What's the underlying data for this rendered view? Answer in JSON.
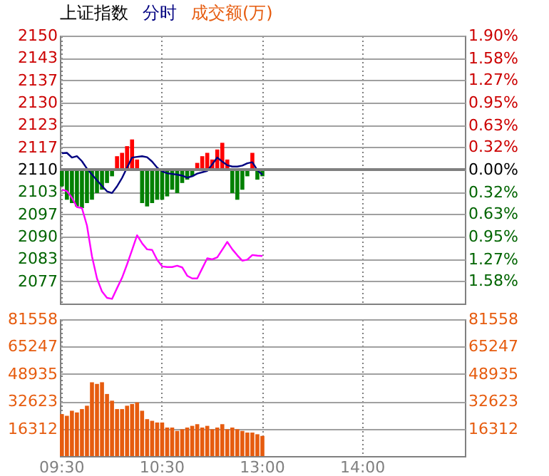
{
  "chart_data": [
    {
      "type": "line",
      "title": "上证指数",
      "categories": [
        null,
        null,
        null,
        null,
        null,
        null,
        null,
        null,
        null,
        null,
        null,
        null,
        null,
        null,
        null,
        null,
        null,
        null,
        null,
        null,
        null,
        null,
        null,
        null,
        null,
        null,
        null,
        null,
        null,
        null,
        null,
        null,
        null,
        null,
        null,
        null,
        null,
        null,
        null,
        null,
        null,
        null,
        null,
        null,
        null,
        null,
        null,
        null,
        null,
        null,
        null,
        null,
        null,
        null,
        null,
        null,
        null,
        null,
        null,
        null,
        null,
        null,
        null,
        null,
        null,
        null,
        null,
        null,
        null,
        null,
        null,
        null,
        null,
        null,
        null,
        null,
        null,
        null,
        null,
        null,
        null
      ],
      "ylim": [
        2070,
        2150
      ],
      "yticks": [
        {
          "value": 2150,
          "label": "2150"
        },
        {
          "value": 2143.33,
          "label": "2143"
        },
        {
          "value": 2136.67,
          "label": "2137"
        },
        {
          "value": 2130,
          "label": "2130"
        },
        {
          "value": 2123.33,
          "label": "2123"
        },
        {
          "value": 2116.67,
          "label": "2117"
        },
        {
          "value": 2110,
          "label": "2110"
        },
        {
          "value": 2103.33,
          "label": "2103"
        },
        {
          "value": 2096.67,
          "label": "2097"
        },
        {
          "value": 2090,
          "label": "2090"
        },
        {
          "value": 2083.33,
          "label": "2083"
        },
        {
          "value": 2076.67,
          "label": "2077"
        }
      ],
      "y2lim": [
        -1.9,
        1.9
      ],
      "y2ticks": [
        {
          "value": 1.9,
          "label": "1.90%"
        },
        {
          "value": 1.58,
          "label": "1.58%"
        },
        {
          "value": 1.27,
          "label": "1.27%"
        },
        {
          "value": 0.95,
          "label": "0.95%"
        },
        {
          "value": 0.63,
          "label": "0.63%"
        },
        {
          "value": 0.32,
          "label": "0.32%"
        },
        {
          "value": 0,
          "label": "0.00%"
        },
        {
          "value": -0.32,
          "label": "0.32%"
        },
        {
          "value": -0.63,
          "label": "0.63%"
        },
        {
          "value": -0.95,
          "label": "0.95%"
        },
        {
          "value": -1.27,
          "label": "1.27%"
        },
        {
          "value": -1.58,
          "label": "1.58%"
        }
      ],
      "tick_labels": "y",
      "grid": true,
      "legend": "top left",
      "ref_lines": [
        {
          "axis": "y",
          "value": 2110,
          "color": "#808080"
        }
      ],
      "series": [
        {
          "type": "bar",
          "base": [
            2110,
            2110,
            2110,
            2110,
            2110,
            2110,
            2110,
            2110,
            2110,
            2110,
            2110,
            2110,
            2110,
            2110,
            2110,
            2110,
            2110,
            2110,
            2110,
            2110,
            2110,
            2110,
            2110,
            2110,
            2110,
            2110,
            2110,
            2110,
            2110,
            2110,
            2110,
            2110,
            2110,
            2110,
            2110,
            2110,
            2110,
            2110,
            2110,
            2110,
            2110,
            null,
            null,
            null,
            null,
            null,
            null,
            null,
            null,
            null,
            null,
            null,
            null,
            null,
            null,
            null,
            null,
            null,
            null,
            null,
            null,
            null,
            null,
            null,
            null,
            null,
            null,
            null,
            null,
            null,
            null,
            null,
            null,
            null,
            null,
            null,
            null,
            null,
            null,
            null,
            null
          ],
          "values": [
            -5,
            -9,
            -10,
            -11,
            -11.5,
            -10,
            -9,
            -7,
            -6,
            -4,
            -2,
            4,
            5,
            7,
            9,
            3,
            -10,
            -11,
            -10,
            -9,
            -9,
            -8,
            -6,
            -7,
            -4,
            -3,
            -2,
            2,
            4,
            5,
            3,
            6,
            8,
            3,
            -7,
            -9,
            -6,
            -2,
            5,
            -3,
            -2,
            null,
            null,
            null,
            null,
            null,
            null,
            null,
            null,
            null,
            null,
            null,
            null,
            null,
            null,
            null,
            null,
            null,
            null,
            null,
            null,
            null,
            null,
            null,
            null,
            null,
            null,
            null,
            null,
            null,
            null,
            null,
            null,
            null,
            null,
            null,
            null,
            null,
            null,
            null,
            null
          ],
          "colors": [
            "#008000",
            "#008000",
            "#008000",
            "#008000",
            "#008000",
            "#008000",
            "#008000",
            "#008000",
            "#008000",
            "#008000",
            "#008000",
            "#ff0000",
            "#ff0000",
            "#ff0000",
            "#ff0000",
            "#ff0000",
            "#008000",
            "#008000",
            "#008000",
            "#008000",
            "#008000",
            "#008000",
            "#008000",
            "#008000",
            "#008000",
            "#008000",
            "#008000",
            "#ff0000",
            "#ff0000",
            "#ff0000",
            "#ff0000",
            "#ff0000",
            "#ff0000",
            "#ff0000",
            "#008000",
            "#008000",
            "#008000",
            "#008000",
            "#ff0000",
            "#008000",
            "#008000",
            null,
            null,
            null,
            null,
            null,
            null,
            null,
            null,
            null,
            null,
            null,
            null,
            null,
            null,
            null,
            null,
            null,
            null,
            null,
            null,
            null,
            null,
            null,
            null,
            null,
            null,
            null,
            null,
            null,
            null,
            null,
            null,
            null,
            null,
            null,
            null,
            null,
            null,
            null,
            null
          ]
        },
        {
          "name": "分时",
          "type": "line",
          "color": "#000080",
          "values": [
            2114.9,
            2115,
            2113.6,
            2114,
            2112.5,
            2110.3,
            2108.5,
            2106.8,
            2105.1,
            2103.5,
            2103,
            2105,
            2107.5,
            2110.6,
            2113.6,
            2113.8,
            2114,
            2113.7,
            2112.4,
            2110.6,
            2109.5,
            2108.9,
            2108.7,
            2108.5,
            2108.2,
            2107.6,
            2108,
            2108.8,
            2109.2,
            2109.6,
            2111.6,
            2113.6,
            2112.4,
            2111.3,
            2110.9,
            2110.9,
            2111.2,
            2111.9,
            2112.2,
            2109.8,
            2108.5,
            null,
            null,
            null,
            null,
            null,
            null,
            null,
            null,
            null,
            null,
            null,
            null,
            null,
            null,
            null,
            null,
            null,
            null,
            null,
            null,
            null,
            null,
            null,
            null,
            null,
            null,
            null,
            null,
            null,
            null,
            null,
            null,
            null,
            null,
            null,
            null,
            null,
            null,
            null,
            null
          ]
        },
        {
          "type": "line",
          "color": "#ff00ff",
          "values": [
            2104,
            2103.6,
            2101.6,
            2098.8,
            2098.5,
            2093.3,
            2084.1,
            2077.5,
            2073.6,
            2071.7,
            2071.4,
            2074.6,
            2077.7,
            2081.7,
            2086,
            2090.4,
            2088,
            2086.2,
            2086,
            2083.1,
            2081.1,
            2080.9,
            2080.9,
            2081.3,
            2080.8,
            2078.3,
            2077.5,
            2077.5,
            2080.5,
            2083.5,
            2083.2,
            2083.8,
            2086.1,
            2088.4,
            2086.2,
            2084.4,
            2082.8,
            2083.1,
            2084.5,
            2084.3,
            2084.2,
            null,
            null,
            null,
            null,
            null,
            null,
            null,
            null,
            null,
            null,
            null,
            null,
            null,
            null,
            null,
            null,
            null,
            null,
            null,
            null,
            null,
            null,
            null,
            null,
            null,
            null,
            null,
            null,
            null,
            null,
            null,
            null,
            null,
            null,
            null,
            null,
            null,
            null,
            null,
            null
          ]
        }
      ]
    },
    {
      "type": "bar",
      "categories": [
        "09:30",
        null,
        null,
        null,
        null,
        null,
        null,
        null,
        null,
        null,
        null,
        null,
        null,
        null,
        null,
        null,
        null,
        null,
        null,
        null,
        "10:30",
        null,
        null,
        null,
        null,
        null,
        null,
        null,
        null,
        null,
        null,
        null,
        null,
        null,
        null,
        null,
        null,
        null,
        null,
        null,
        "13:00",
        null,
        null,
        null,
        null,
        null,
        null,
        null,
        null,
        null,
        null,
        null,
        null,
        null,
        null,
        null,
        null,
        null,
        null,
        null,
        "14:00",
        null,
        null,
        null,
        null,
        null,
        null,
        null,
        null,
        null,
        null,
        null,
        null,
        null,
        null,
        null,
        null,
        null,
        null,
        null,
        null
      ],
      "ylim": [
        0,
        81558
      ],
      "yticks": [
        16312,
        32623,
        48935,
        65247,
        81558
      ],
      "y2lim": [
        0,
        81558
      ],
      "y2ticks": [
        16312,
        32623,
        48935,
        65247,
        81558
      ],
      "grid": true,
      "legend": "top left",
      "series": [
        {
          "name": "成交额(万)",
          "color": "#e65c0f",
          "values": [
            25000,
            24000,
            27000,
            26000,
            28000,
            30000,
            44000,
            43000,
            44000,
            37000,
            33000,
            28000,
            28000,
            30000,
            31000,
            32000,
            27000,
            22000,
            21000,
            20000,
            20000,
            17000,
            17000,
            15000,
            16000,
            17000,
            18000,
            19000,
            17000,
            18000,
            16000,
            17000,
            19000,
            16000,
            17000,
            16000,
            15000,
            14000,
            14000,
            13000,
            12000,
            null,
            null,
            null,
            null,
            null,
            null,
            null,
            null,
            null,
            null,
            null,
            null,
            null,
            null,
            null,
            null,
            null,
            null,
            null,
            null,
            null,
            null,
            null,
            null,
            null,
            null,
            null,
            null,
            null,
            null,
            null,
            null,
            null,
            null,
            null,
            null,
            null,
            null,
            null,
            null
          ]
        }
      ]
    }
  ]
}
